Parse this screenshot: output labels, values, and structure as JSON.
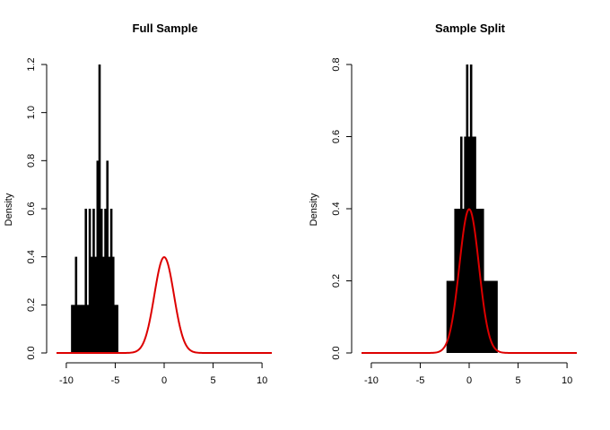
{
  "colors": {
    "histogram": "#000000",
    "density_curve": "#dd0000",
    "axis": "#000000"
  },
  "chart_data": [
    {
      "type": "bar",
      "title": "Full Sample",
      "xlabel": "",
      "ylabel": "Density",
      "xlim": [
        -11,
        11
      ],
      "ylim": [
        0,
        1.2
      ],
      "xticks": [
        -10,
        -5,
        0,
        5,
        10
      ],
      "yticks": [
        0.0,
        0.2,
        0.4,
        0.6,
        0.8,
        1.0,
        1.2
      ],
      "xtick_labels": [
        "-10",
        "-5",
        "0",
        "5",
        "10"
      ],
      "ytick_labels": [
        "0.0",
        "0.2",
        "0.4",
        "0.6",
        "0.8",
        "1.0",
        "1.2"
      ],
      "grid": false,
      "histogram": {
        "x": [
          -9.4,
          -9.2,
          -9.0,
          -8.8,
          -8.6,
          -8.4,
          -8.2,
          -8.0,
          -7.8,
          -7.6,
          -7.4,
          -7.2,
          -7.0,
          -6.8,
          -6.6,
          -6.4,
          -6.2,
          -6.0,
          -5.8,
          -5.6,
          -5.4,
          -5.2,
          -5.0,
          -4.8
        ],
        "density": [
          0.2,
          0.2,
          0.4,
          0.2,
          0.2,
          0.2,
          0.2,
          0.6,
          0.2,
          0.6,
          0.4,
          0.6,
          0.4,
          0.8,
          1.2,
          0.6,
          0.4,
          0.6,
          0.8,
          0.4,
          0.6,
          0.4,
          0.2,
          0.2
        ]
      },
      "density_curve": {
        "name": "",
        "mean": 0,
        "sd": 1,
        "x_range": [
          -11,
          11
        ]
      }
    },
    {
      "type": "bar",
      "title": "Sample Split",
      "xlabel": "",
      "ylabel": "Density",
      "xlim": [
        -11,
        11
      ],
      "ylim": [
        0,
        0.8
      ],
      "xticks": [
        -10,
        -5,
        0,
        5,
        10
      ],
      "yticks": [
        0.0,
        0.2,
        0.4,
        0.6,
        0.8
      ],
      "xtick_labels": [
        "-10",
        "-5",
        "0",
        "5",
        "10"
      ],
      "ytick_labels": [
        "0.0",
        "0.2",
        "0.4",
        "0.6",
        "0.8"
      ],
      "grid": false,
      "histogram": {
        "x": [
          -2.2,
          -2.0,
          -1.8,
          -1.6,
          -1.4,
          -1.2,
          -1.0,
          -0.8,
          -0.6,
          -0.4,
          -0.2,
          0.0,
          0.2,
          0.4,
          0.6,
          0.8,
          1.0,
          1.2,
          1.4,
          1.6,
          1.8,
          2.0,
          2.2,
          2.4,
          2.6,
          2.8
        ],
        "density": [
          0.2,
          0.2,
          0.2,
          0.2,
          0.4,
          0.4,
          0.4,
          0.6,
          0.4,
          0.6,
          0.8,
          0.6,
          0.8,
          0.6,
          0.6,
          0.4,
          0.4,
          0.4,
          0.4,
          0.2,
          0.2,
          0.2,
          0.2,
          0.2,
          0.2,
          0.2
        ]
      },
      "density_curve": {
        "name": "",
        "mean": 0,
        "sd": 1,
        "x_range": [
          -11,
          11
        ]
      }
    }
  ]
}
